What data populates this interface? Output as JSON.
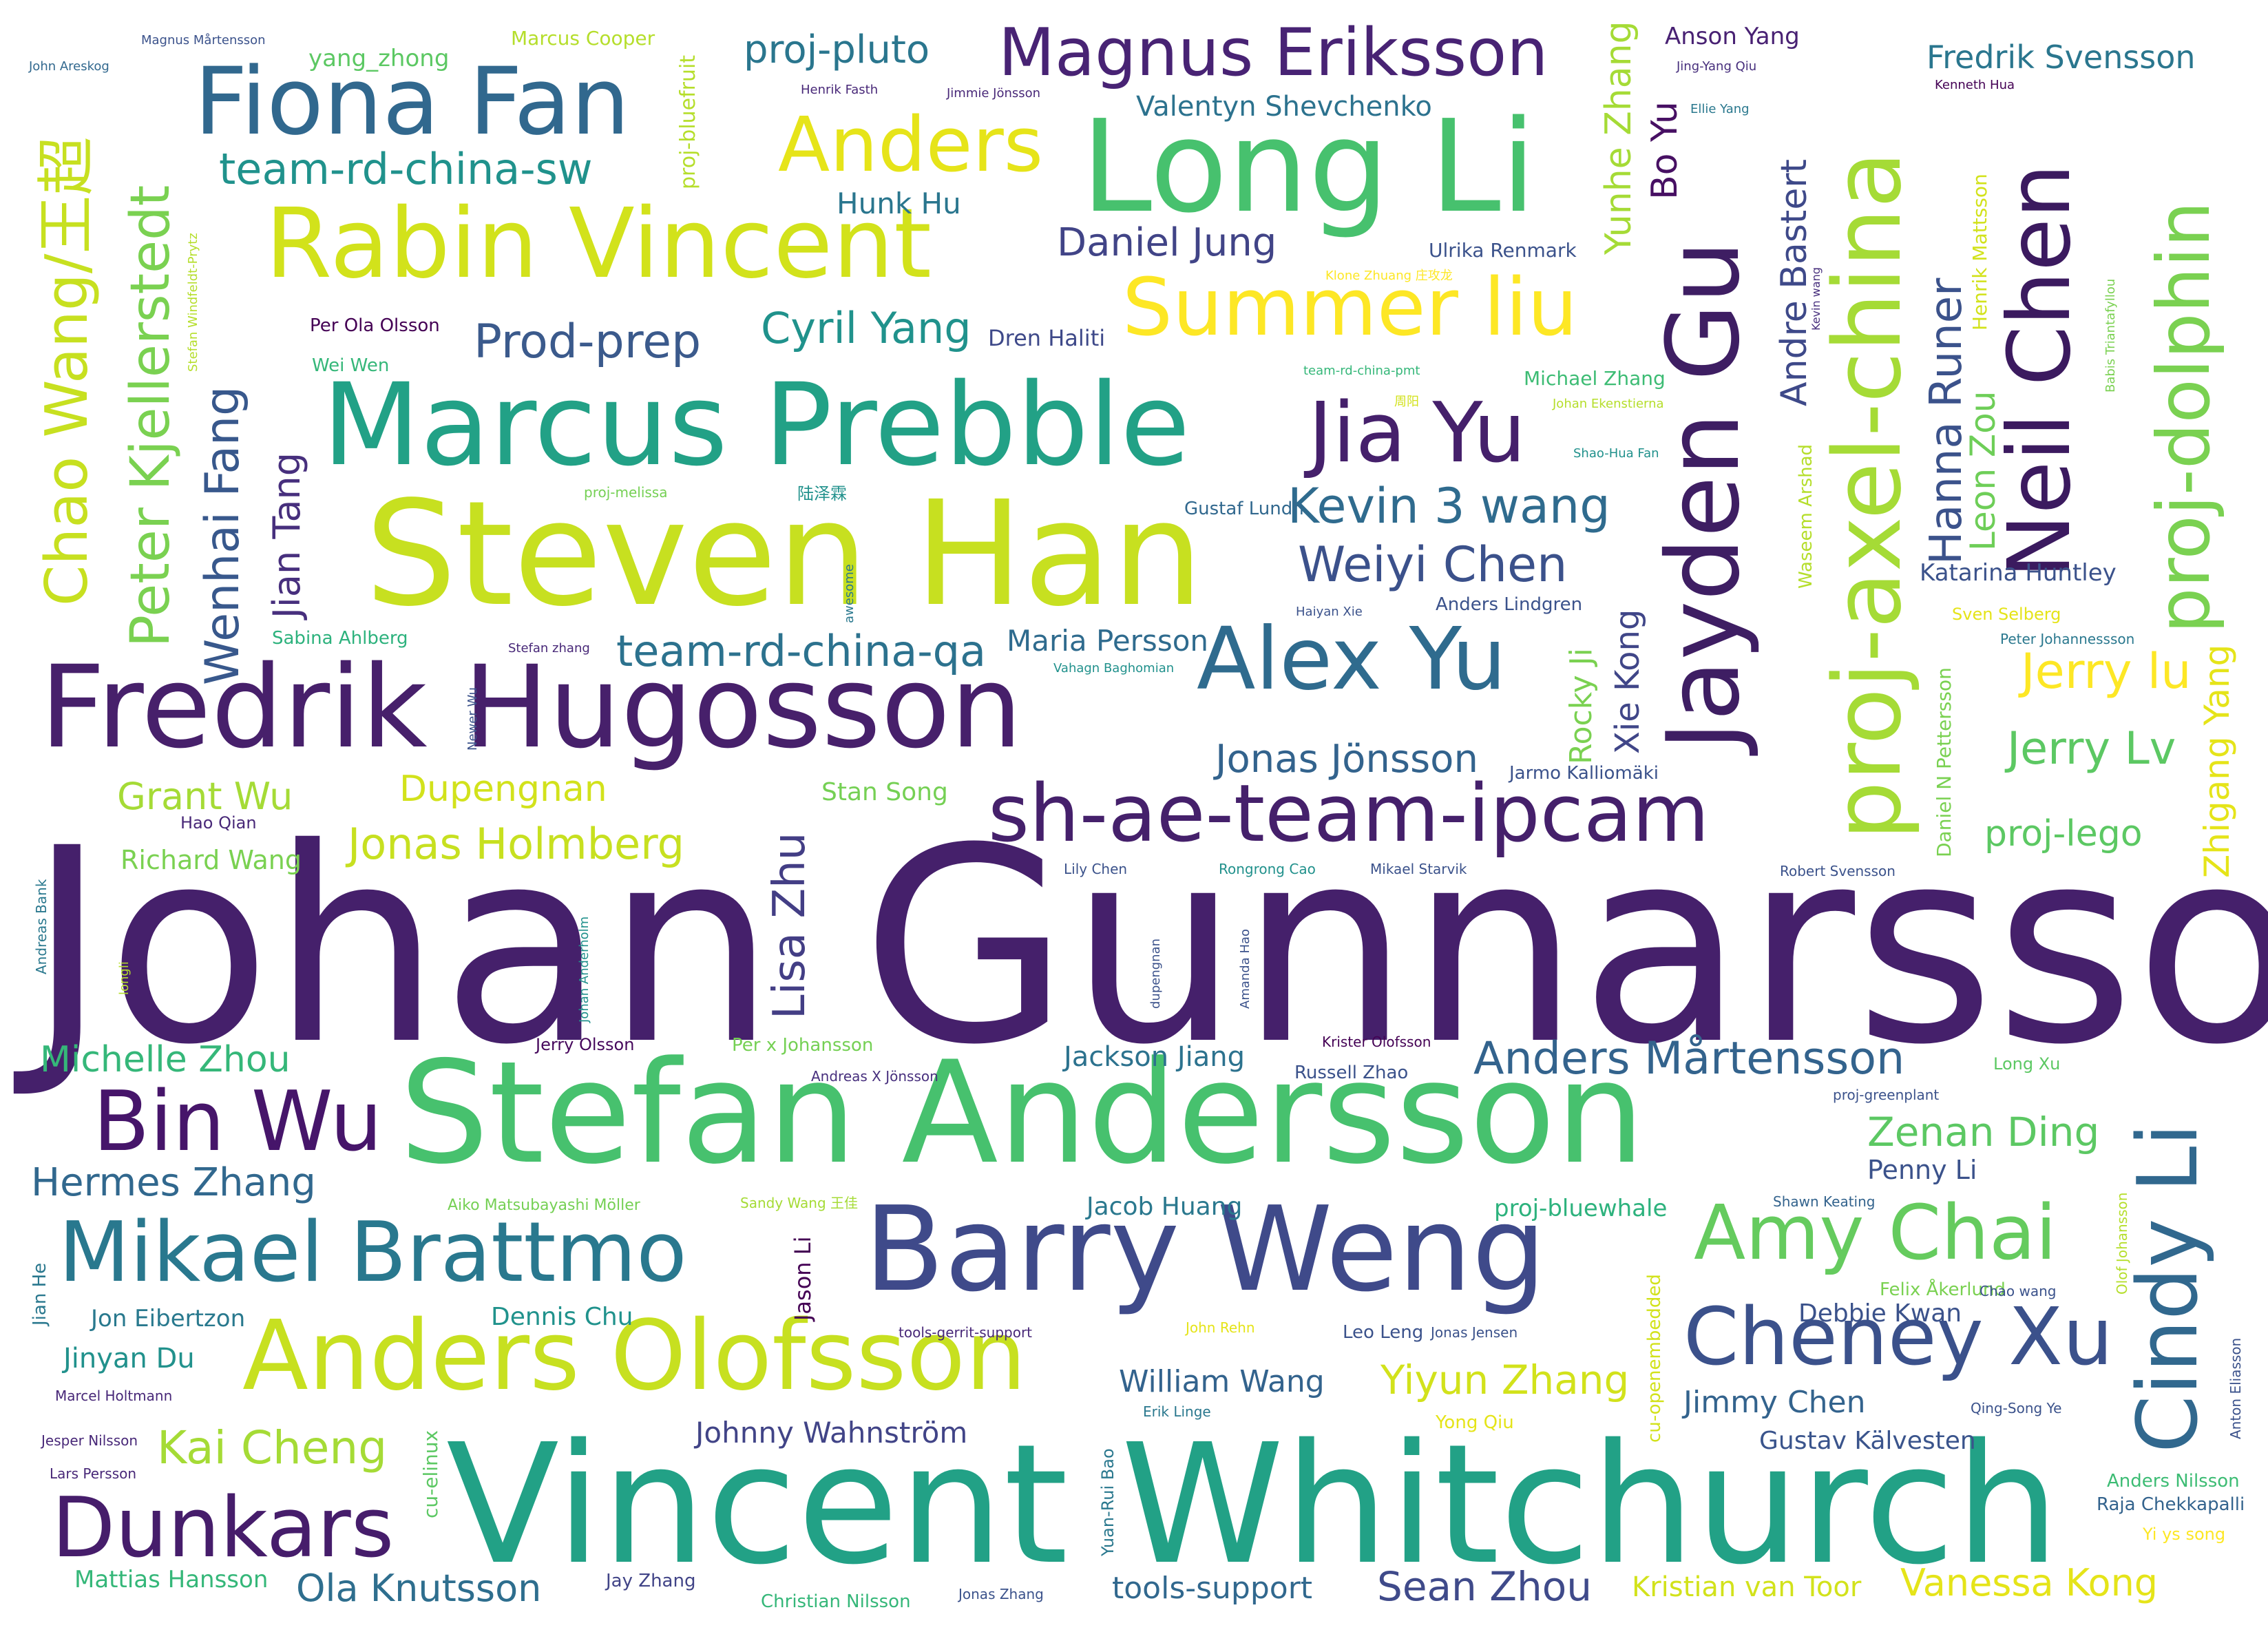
{
  "words": [
    {
      "text": "Johan Gunnarsson",
      "color": "#45206b"
    },
    {
      "text": "Vincent Whitchurch",
      "color": "#22a186"
    },
    {
      "text": "Stefan Andersson",
      "color": "#47c16e"
    },
    {
      "text": "Steven Han",
      "color": "#c7e020"
    },
    {
      "text": "Fredrik Hugosson",
      "color": "#47206b"
    },
    {
      "text": "Marcus Prebble",
      "color": "#22a186"
    },
    {
      "text": "Long Li",
      "color": "#47c16e"
    },
    {
      "text": "Barry Weng",
      "color": "#3f4a8a"
    },
    {
      "text": "Anders Olofsson",
      "color": "#c7e020"
    },
    {
      "text": "sh-ae-team-ipcam",
      "color": "#45206b"
    },
    {
      "text": "Rabin Vincent",
      "color": "#d2e21b"
    },
    {
      "text": "Fiona Fan",
      "color": "#31688e"
    },
    {
      "text": "Jayden Gu",
      "color": "#3e1e63"
    },
    {
      "text": "proj-axel-china",
      "color": "#a5db36"
    },
    {
      "text": "Alex Yu",
      "color": "#2f6b8e"
    },
    {
      "text": "Neil Chen",
      "color": "#3b1a5f"
    },
    {
      "text": "Mikael Brattmo",
      "color": "#29788e"
    },
    {
      "text": "Summer liu",
      "color": "#fde725"
    },
    {
      "text": "Cheney Xu",
      "color": "#3b518b"
    },
    {
      "text": "Jia Yu",
      "color": "#45206b"
    },
    {
      "text": "Anders",
      "color": "#e6e419"
    },
    {
      "text": "Magnus Eriksson",
      "color": "#482374"
    },
    {
      "text": "Amy Chai",
      "color": "#65cb5e"
    },
    {
      "text": "Bin Wu",
      "color": "#46156a"
    },
    {
      "text": "Dunkars",
      "color": "#461d6b"
    },
    {
      "text": "Cindy Li",
      "color": "#31688e"
    },
    {
      "text": "proj-dolphin",
      "color": "#7ad151"
    },
    {
      "text": "Chao Wang/王超",
      "color": "#c7e020"
    },
    {
      "text": "Peter Kjellerstedt",
      "color": "#7ad151"
    },
    {
      "text": "Kevin 3 wang",
      "color": "#2f6b8e"
    },
    {
      "text": "Weiyi Chen",
      "color": "#3b518b"
    },
    {
      "text": "team-rd-china-sw",
      "color": "#20928c"
    },
    {
      "text": "Prod-prep",
      "color": "#3b5a8c"
    },
    {
      "text": "Cyril Yang",
      "color": "#20928c"
    },
    {
      "text": "team-rd-china-qa",
      "color": "#2c728e"
    },
    {
      "text": "Anders Mårtensson",
      "color": "#33638d"
    },
    {
      "text": "Wenhai Fang",
      "color": "#38588c"
    },
    {
      "text": "Jerry lu",
      "color": "#fde725"
    },
    {
      "text": "Jerry Lv",
      "color": "#5cc863"
    },
    {
      "text": "Jonas Holmberg",
      "color": "#c7e020"
    },
    {
      "text": "Hanna Runer",
      "color": "#3b528b"
    },
    {
      "text": "Lisa Zhu",
      "color": "#433e85"
    },
    {
      "text": "Ola Knutsson",
      "color": "#2e6e8e"
    },
    {
      "text": "Sean Zhou",
      "color": "#3f4a8a"
    },
    {
      "text": "Kai Cheng",
      "color": "#a5db36"
    },
    {
      "text": "Hermes Zhang",
      "color": "#31688e"
    },
    {
      "text": "Michelle Zhou",
      "color": "#35b779"
    },
    {
      "text": "Zenan Ding",
      "color": "#5cc863"
    },
    {
      "text": "Yiyun Zhang",
      "color": "#d2e21b"
    },
    {
      "text": "Vanessa Kong",
      "color": "#e5e419"
    },
    {
      "text": "Jonas Jönsson",
      "color": "#33638d"
    },
    {
      "text": "Daniel Jung",
      "color": "#414487"
    },
    {
      "text": "Grant Wu",
      "color": "#a5db36"
    },
    {
      "text": "Dupengnan",
      "color": "#d2e21b"
    },
    {
      "text": "Yunhe Zhang",
      "color": "#a5db36"
    },
    {
      "text": "Jian Tang",
      "color": "#472f7d"
    },
    {
      "text": "Andre Bastert",
      "color": "#3e4989"
    },
    {
      "text": "Leon Zou",
      "color": "#6ece58"
    },
    {
      "text": "Bo Yu",
      "color": "#471063"
    },
    {
      "text": "Zhigang Yang",
      "color": "#e5e419"
    },
    {
      "text": "proj-lego",
      "color": "#5cc863"
    },
    {
      "text": "proj-pluto",
      "color": "#2a768e"
    },
    {
      "text": "Fredrik Svensson",
      "color": "#2a768e"
    },
    {
      "text": "Valentyn Shevchenko",
      "color": "#2c728e"
    },
    {
      "text": "Hunk Hu",
      "color": "#2a768e"
    },
    {
      "text": "Rocky Ji",
      "color": "#7ad151"
    },
    {
      "text": "Xie Kong",
      "color": "#404688"
    },
    {
      "text": "Maria Persson",
      "color": "#2f6b8e"
    },
    {
      "text": "Jackson Jiang",
      "color": "#2c728e"
    },
    {
      "text": "Jacob Huang",
      "color": "#2a788e"
    },
    {
      "text": "William Wang",
      "color": "#33638d"
    },
    {
      "text": "Jimmy Chen",
      "color": "#33638d"
    },
    {
      "text": "Debbie Kwan",
      "color": "#3b528b"
    },
    {
      "text": "Gustav Kälvesten",
      "color": "#3a548c"
    },
    {
      "text": "Johnny Wahnström",
      "color": "#414487"
    },
    {
      "text": "tools-support",
      "color": "#31688e"
    },
    {
      "text": "Kristian van Toor",
      "color": "#d2e21b"
    },
    {
      "text": "Katarina Huntley",
      "color": "#3b528b"
    },
    {
      "text": "Penny Li",
      "color": "#3b528b"
    },
    {
      "text": "proj-bluewhale",
      "color": "#2db27d"
    },
    {
      "text": "Dennis Chu",
      "color": "#20928c"
    },
    {
      "text": "Jinyan Du",
      "color": "#21918c"
    },
    {
      "text": "Jon Eibertzon",
      "color": "#29798e"
    },
    {
      "text": "Mattias Hansson",
      "color": "#35b779"
    },
    {
      "text": "Richard Wang",
      "color": "#7ad151"
    },
    {
      "text": "Stan Song",
      "color": "#75d054"
    },
    {
      "text": "Jason Li",
      "color": "#440154"
    },
    {
      "text": "Ulrika Renmark",
      "color": "#3b528b"
    },
    {
      "text": "Dren Haliti",
      "color": "#3e4989"
    },
    {
      "text": "proj-bluefruit",
      "color": "#b5de2b"
    },
    {
      "text": "yang_zhong",
      "color": "#5cc863"
    },
    {
      "text": "Marcus Cooper",
      "color": "#b5de2b"
    },
    {
      "text": "Anson Yang",
      "color": "#482173"
    },
    {
      "text": "Michael Zhang",
      "color": "#3dbc74"
    },
    {
      "text": "Henrik Mattsson",
      "color": "#d2e21b"
    },
    {
      "text": "Waseem Arshad",
      "color": "#b5de2b"
    },
    {
      "text": "Daniel N Pettersson",
      "color": "#7ad151"
    },
    {
      "text": "cu-openembedded",
      "color": "#d2e21b"
    },
    {
      "text": "Sabina Ahlberg",
      "color": "#2db27d"
    },
    {
      "text": "Jarmo Kalliomäki",
      "color": "#3b528b"
    },
    {
      "text": "Gustaf Lundh",
      "color": "#31688e"
    },
    {
      "text": "Anders Lindgren",
      "color": "#3b528b"
    },
    {
      "text": "Sven Selberg",
      "color": "#e5e419"
    },
    {
      "text": "Peter Johannessson",
      "color": "#2a788e"
    },
    {
      "text": "Per Ola Olsson",
      "color": "#440154"
    },
    {
      "text": "Wei Wen",
      "color": "#35b779"
    },
    {
      "text": "Hao Qian",
      "color": "#482878"
    },
    {
      "text": "Jerry Olsson",
      "color": "#46085c"
    },
    {
      "text": "Per x Johansson",
      "color": "#75d054"
    },
    {
      "text": "Russell Zhao",
      "color": "#3b528b"
    },
    {
      "text": "Long Xu",
      "color": "#5cc863"
    },
    {
      "text": "Aiko Matsubayashi Möller",
      "color": "#75d054"
    },
    {
      "text": "Sandy Wang 王佳",
      "color": "#a5db36"
    },
    {
      "text": "Felix Åkerlund",
      "color": "#7ad151"
    },
    {
      "text": "Chao wang",
      "color": "#3b528b"
    },
    {
      "text": "Leo Leng",
      "color": "#3b528b"
    },
    {
      "text": "Jonas Jensen",
      "color": "#3b528b"
    },
    {
      "text": "Yong Qiu",
      "color": "#e5e419"
    },
    {
      "text": "Anders Nilsson",
      "color": "#3dbc74"
    },
    {
      "text": "Raja Chekkapalli",
      "color": "#33638d"
    },
    {
      "text": "Yi ys song",
      "color": "#fde725"
    },
    {
      "text": "Christian Nilsson",
      "color": "#35b779"
    },
    {
      "text": "Jay Zhang",
      "color": "#414487"
    },
    {
      "text": "Jonas Zhang",
      "color": "#3b528b"
    },
    {
      "text": "Jesper Nilsson",
      "color": "#482878"
    },
    {
      "text": "Lars Persson",
      "color": "#482878"
    },
    {
      "text": "Marcel Holtmann",
      "color": "#482878"
    },
    {
      "text": "Jian He",
      "color": "#2a788e"
    },
    {
      "text": "cu-elinux",
      "color": "#5cc863"
    },
    {
      "text": "Yuan-Rui Bao",
      "color": "#2a788e"
    },
    {
      "text": "Erik Linge",
      "color": "#2a788e"
    },
    {
      "text": "Qing-Song Ye",
      "color": "#3b528b"
    },
    {
      "text": "Anton Eliasson",
      "color": "#3b528b"
    },
    {
      "text": "Olof Johansson",
      "color": "#b5de2b"
    },
    {
      "text": "Shawn Keating",
      "color": "#33638d"
    },
    {
      "text": "proj-greenplant",
      "color": "#3b528b"
    },
    {
      "text": "Andreas X Jönsson",
      "color": "#472f7d"
    },
    {
      "text": "Krister Olofsson",
      "color": "#440154"
    },
    {
      "text": "John Rehn",
      "color": "#e5e419"
    },
    {
      "text": "tools-gerrit-support",
      "color": "#482878"
    },
    {
      "text": "Lily Chen",
      "color": "#3b528b"
    },
    {
      "text": "Rongrong Cao",
      "color": "#21918c"
    },
    {
      "text": "Mikael Starvik",
      "color": "#3b528b"
    },
    {
      "text": "Robert Svensson",
      "color": "#3b528b"
    },
    {
      "text": "Andreas Bank",
      "color": "#2a788e"
    },
    {
      "text": "Johan Anderholm",
      "color": "#21918c"
    },
    {
      "text": "longli",
      "color": "#b5de2b"
    },
    {
      "text": "dupengnan",
      "color": "#3b528b"
    },
    {
      "text": "Amanda Hao",
      "color": "#3b528b"
    },
    {
      "text": "Newer Wu",
      "color": "#3b528b"
    },
    {
      "text": "Stefan zhang",
      "color": "#482878"
    },
    {
      "text": "awesome",
      "color": "#2a788e"
    },
    {
      "text": "Haiyan Xie",
      "color": "#3b528b"
    },
    {
      "text": "Vahagn Baghomian",
      "color": "#21918c"
    },
    {
      "text": "proj-melissa",
      "color": "#75d054"
    },
    {
      "text": "陆泽霖",
      "color": "#21918c"
    },
    {
      "text": "Shao-Hua Fan",
      "color": "#21918c"
    },
    {
      "text": "Johan Ekenstierna",
      "color": "#b5de2b"
    },
    {
      "text": "team-rd-china-pmt",
      "color": "#35b779"
    },
    {
      "text": "周阳",
      "color": "#d2e21b"
    },
    {
      "text": "Klone Zhuang 庄攻龙",
      "color": "#fde725"
    },
    {
      "text": "Kevin wang",
      "color": "#472f7d"
    },
    {
      "text": "Babis Triantafyllou",
      "color": "#7ad151"
    },
    {
      "text": "Kenneth Hua",
      "color": "#440154"
    },
    {
      "text": "Ellie Yang",
      "color": "#2a788e"
    },
    {
      "text": "Jing-Yang Qiu",
      "color": "#472f7d"
    },
    {
      "text": "Henrik Fasth",
      "color": "#482878"
    },
    {
      "text": "Jimmie Jönsson",
      "color": "#482878"
    },
    {
      "text": "Magnus Mårtensson",
      "color": "#3b528b"
    },
    {
      "text": "John Areskog",
      "color": "#31688e"
    },
    {
      "text": "Stefan Windfeldt-Prytz",
      "color": "#b5de2b"
    }
  ]
}
